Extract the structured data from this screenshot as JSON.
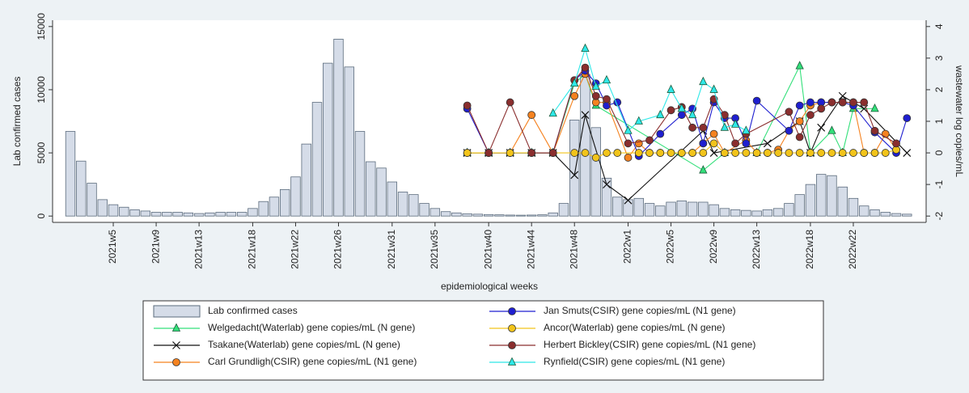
{
  "chart_data": {
    "type": "combo",
    "ylabel": "Lab confirmed cases",
    "y2label": "wastewater log copies/mL",
    "xlabel": "epidemiological weeks",
    "ylim": [
      -500,
      15500
    ],
    "yticks": [
      0,
      5000,
      10000,
      15000
    ],
    "y2lim": [
      -2.2,
      4.2
    ],
    "y2ticks": [
      -2,
      -1,
      0,
      1,
      2,
      3,
      4
    ],
    "legend": "bottom",
    "categories": [
      null,
      null,
      null,
      null,
      "2021w5",
      null,
      null,
      null,
      "2021w9",
      null,
      null,
      null,
      "2021w13",
      null,
      null,
      null,
      null,
      "2021w18",
      null,
      null,
      null,
      "2021w22",
      null,
      null,
      null,
      "2021w26",
      null,
      null,
      null,
      null,
      "2021w31",
      null,
      null,
      null,
      "2021w35",
      null,
      null,
      null,
      null,
      "2021w40",
      null,
      null,
      null,
      "2021w44",
      null,
      null,
      null,
      "2021w48",
      null,
      null,
      null,
      null,
      "2022w1",
      null,
      null,
      null,
      "2022w5",
      null,
      null,
      null,
      "2022w9",
      null,
      null,
      null,
      "2022w13",
      null,
      null,
      null,
      null,
      "2022w18",
      null,
      null,
      null,
      "2022w22",
      null,
      null,
      null,
      null,
      null
    ],
    "series": [
      {
        "name": "Lab confirmed cases",
        "type": "bar",
        "color": "#d5dce8",
        "values": [
          6700,
          4350,
          2600,
          1300,
          900,
          700,
          500,
          400,
          300,
          300,
          300,
          250,
          200,
          250,
          300,
          300,
          300,
          600,
          1150,
          1500,
          2100,
          3100,
          5700,
          9000,
          12100,
          14000,
          11800,
          6700,
          4300,
          3800,
          2700,
          1900,
          1700,
          1000,
          600,
          350,
          250,
          180,
          150,
          120,
          100,
          80,
          70,
          80,
          100,
          250,
          1000,
          7600,
          11200,
          7000,
          3000,
          1500,
          1300,
          1400,
          1000,
          800,
          1100,
          1200,
          1100,
          1100,
          900,
          600,
          500,
          450,
          400,
          500,
          600,
          1000,
          1700,
          2500,
          3300,
          3200,
          2300,
          1400,
          800,
          500,
          300,
          200,
          150
        ]
      },
      {
        "name": "Welgedacht(Waterlab) gene copies/mL (N gene)",
        "type": "line",
        "axis": "y2",
        "marker": "triangle",
        "color": "#33e07a",
        "values": [
          null,
          null,
          null,
          null,
          null,
          null,
          null,
          null,
          null,
          null,
          null,
          null,
          null,
          null,
          null,
          null,
          null,
          null,
          null,
          null,
          null,
          null,
          null,
          null,
          null,
          null,
          null,
          null,
          null,
          null,
          null,
          null,
          null,
          null,
          null,
          null,
          null,
          0,
          null,
          0,
          null,
          0,
          null,
          0,
          null,
          0,
          null,
          2.2,
          2.5,
          1.5,
          null,
          null,
          null,
          null,
          null,
          null,
          null,
          null,
          null,
          -0.55,
          null,
          0,
          null,
          null,
          0,
          null,
          null,
          null,
          2.75,
          0,
          null,
          0.7,
          0,
          1.4,
          null,
          1.4,
          null,
          null,
          null
        ]
      },
      {
        "name": "Tsakane(Waterlab) gene copies/mL (N gene)",
        "type": "line",
        "axis": "y2",
        "marker": "x",
        "color": "#111111",
        "values": [
          null,
          null,
          null,
          null,
          null,
          null,
          null,
          null,
          null,
          null,
          null,
          null,
          null,
          null,
          null,
          null,
          null,
          null,
          null,
          null,
          null,
          null,
          null,
          null,
          null,
          null,
          null,
          null,
          null,
          null,
          null,
          null,
          null,
          null,
          null,
          null,
          null,
          0,
          null,
          0,
          null,
          0,
          null,
          0,
          null,
          0,
          null,
          -0.7,
          1.2,
          null,
          -1.0,
          null,
          -1.5,
          null,
          null,
          null,
          null,
          null,
          null,
          0.7,
          0,
          null,
          null,
          null,
          null,
          0.3,
          null,
          null,
          1.0,
          0,
          0.8,
          null,
          1.8,
          null,
          1.4,
          null,
          null,
          null,
          0
        ]
      },
      {
        "name": "Carl Grundligh(CSIR) gene copies/mL (N1 gene)",
        "type": "line",
        "axis": "y2",
        "marker": "circle",
        "color": "#f5821f",
        "values": [
          null,
          null,
          null,
          null,
          null,
          null,
          null,
          null,
          null,
          null,
          null,
          null,
          null,
          null,
          null,
          null,
          null,
          null,
          null,
          null,
          null,
          null,
          null,
          null,
          null,
          null,
          null,
          null,
          null,
          null,
          null,
          null,
          null,
          null,
          null,
          null,
          null,
          0,
          null,
          0,
          null,
          0,
          null,
          1.2,
          null,
          0,
          null,
          1.8,
          2.5,
          1.6,
          1.6,
          null,
          -0.15,
          0.3,
          0,
          0,
          0,
          0,
          0,
          0.3,
          0.6,
          0,
          null,
          0.4,
          0,
          0,
          0.1,
          0.7,
          1.0,
          1.5,
          1.6,
          1.6,
          1.6,
          1.6,
          0,
          0,
          0.6,
          0.1,
          null
        ]
      },
      {
        "name": "Jan Smuts(CSIR) gene copies/mL (N1 gene)",
        "type": "line",
        "axis": "y2",
        "marker": "circle",
        "color": "#1f1fd0",
        "values": [
          null,
          null,
          null,
          null,
          null,
          null,
          null,
          null,
          null,
          null,
          null,
          null,
          null,
          null,
          null,
          null,
          null,
          null,
          null,
          null,
          null,
          null,
          null,
          null,
          null,
          null,
          null,
          null,
          null,
          null,
          null,
          null,
          null,
          null,
          null,
          null,
          null,
          1.4,
          null,
          0,
          null,
          0,
          null,
          0,
          null,
          0,
          null,
          2.3,
          2.6,
          2.2,
          1.5,
          1.6,
          null,
          -0.1,
          null,
          0.6,
          null,
          1.2,
          1.4,
          0.3,
          1.6,
          1.1,
          1.1,
          0.3,
          1.65,
          null,
          null,
          0.7,
          1.5,
          1.6,
          1.6,
          1.6,
          1.6,
          1.5,
          null,
          0.65,
          null,
          0,
          1.1
        ]
      },
      {
        "name": "Ancor(Waterlab) gene copies/mL (N gene)",
        "type": "line",
        "axis": "y2",
        "marker": "circle",
        "color": "#f2c41a",
        "values": [
          null,
          null,
          null,
          null,
          null,
          null,
          null,
          null,
          null,
          null,
          null,
          null,
          null,
          null,
          null,
          null,
          null,
          null,
          null,
          null,
          null,
          null,
          null,
          null,
          null,
          null,
          null,
          null,
          null,
          null,
          null,
          null,
          null,
          null,
          null,
          null,
          null,
          0,
          null,
          0,
          null,
          0,
          null,
          0,
          null,
          0,
          null,
          0,
          0,
          -0.15,
          0,
          0,
          null,
          0,
          0,
          0,
          0,
          0,
          0,
          0,
          0.3,
          0,
          0,
          0,
          0,
          0,
          0,
          0,
          0,
          0,
          0,
          0,
          0,
          0,
          0,
          0,
          0,
          0.1,
          null
        ]
      },
      {
        "name": "Herbert Bickley(CSIR) gene copies/mL (N1 gene)",
        "type": "line",
        "axis": "y2",
        "marker": "circle",
        "color": "#8a2e2e",
        "values": [
          null,
          null,
          null,
          null,
          null,
          null,
          null,
          null,
          null,
          null,
          null,
          null,
          null,
          null,
          null,
          null,
          null,
          null,
          null,
          null,
          null,
          null,
          null,
          null,
          null,
          null,
          null,
          null,
          null,
          null,
          null,
          null,
          null,
          null,
          null,
          null,
          null,
          1.5,
          null,
          0,
          null,
          1.6,
          null,
          0,
          null,
          0,
          null,
          2.3,
          2.7,
          1.8,
          1.7,
          null,
          0.3,
          null,
          0.4,
          null,
          1.35,
          1.45,
          0.8,
          0.8,
          1.7,
          1.2,
          0.3,
          0.6,
          null,
          null,
          null,
          1.3,
          0.5,
          1.2,
          1.4,
          1.6,
          1.6,
          1.6,
          1.6,
          0.7,
          null,
          0.3,
          null
        ]
      },
      {
        "name": "Rynfield(CSIR) gene copies/mL (N1 gene)",
        "type": "line",
        "axis": "y2",
        "marker": "triangle",
        "color": "#2ee8e8",
        "values": [
          null,
          null,
          null,
          null,
          null,
          null,
          null,
          null,
          null,
          null,
          null,
          null,
          null,
          null,
          null,
          null,
          null,
          null,
          null,
          null,
          null,
          null,
          null,
          null,
          null,
          null,
          null,
          null,
          null,
          null,
          null,
          null,
          null,
          null,
          null,
          null,
          null,
          null,
          null,
          null,
          null,
          null,
          null,
          null,
          null,
          1.25,
          null,
          2.2,
          3.3,
          2.1,
          2.3,
          null,
          0.7,
          1.0,
          null,
          1.2,
          2.0,
          1.4,
          1.2,
          2.25,
          2.0,
          0.8,
          0.9,
          0.7,
          null,
          null,
          null,
          null,
          null,
          null,
          null,
          null,
          null,
          null,
          null,
          null,
          null,
          null,
          null
        ]
      }
    ]
  }
}
